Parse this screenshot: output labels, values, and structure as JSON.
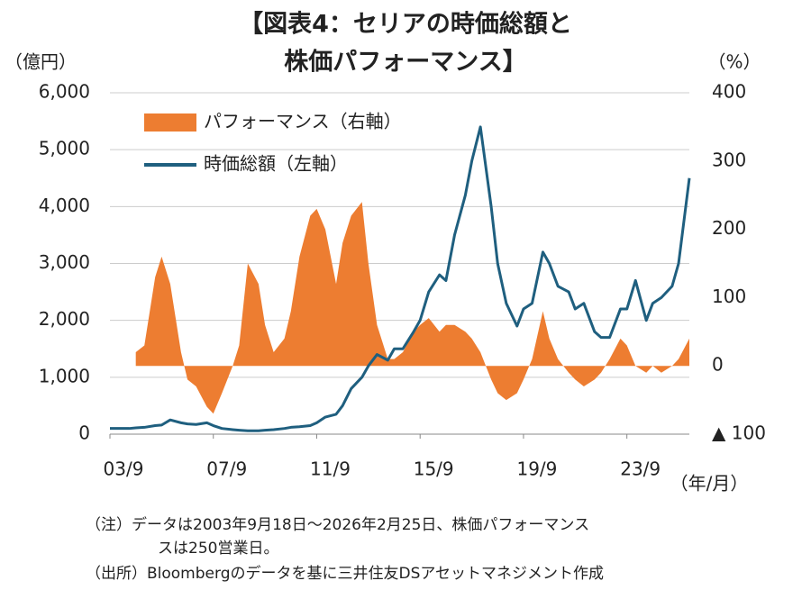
{
  "chart_data": {
    "type": "dual-axis-area-line",
    "title_lines": [
      "【図表4：セリアの時価総額と",
      "株価パフォーマンス】"
    ],
    "y_label": "（億円）",
    "y2_label": "（%）",
    "x_label": "（年/月）",
    "x": [
      "2003-09",
      "2004-01",
      "2004-06",
      "2004-09",
      "2005-01",
      "2005-06",
      "2005-09",
      "2006-01",
      "2006-06",
      "2006-09",
      "2007-01",
      "2007-06",
      "2007-09",
      "2008-01",
      "2008-06",
      "2008-09",
      "2009-01",
      "2009-06",
      "2009-09",
      "2010-01",
      "2010-06",
      "2010-09",
      "2011-01",
      "2011-06",
      "2011-09",
      "2012-01",
      "2012-06",
      "2012-09",
      "2013-01",
      "2013-06",
      "2013-09",
      "2014-01",
      "2014-06",
      "2014-09",
      "2015-01",
      "2015-06",
      "2015-09",
      "2016-01",
      "2016-06",
      "2016-09",
      "2017-01",
      "2017-06",
      "2017-09",
      "2018-01",
      "2018-06",
      "2018-09",
      "2019-01",
      "2019-06",
      "2019-09",
      "2020-01",
      "2020-06",
      "2020-09",
      "2021-01",
      "2021-06",
      "2021-09",
      "2022-01",
      "2022-06",
      "2022-09",
      "2023-01",
      "2023-06",
      "2023-09",
      "2024-01",
      "2024-06",
      "2024-09",
      "2025-01",
      "2025-06",
      "2025-09",
      "2026-02"
    ],
    "series": [
      {
        "name": "パフォーマンス（右軸）",
        "kind": "area",
        "axis": "y2",
        "color": "#ed7d31",
        "values": [
          null,
          null,
          null,
          20,
          30,
          130,
          160,
          120,
          20,
          -20,
          -30,
          -60,
          -70,
          -40,
          0,
          30,
          150,
          120,
          60,
          20,
          40,
          80,
          160,
          220,
          230,
          200,
          120,
          180,
          220,
          240,
          150,
          60,
          10,
          10,
          20,
          50,
          60,
          70,
          50,
          60,
          60,
          50,
          40,
          20,
          -20,
          -40,
          -50,
          -40,
          -20,
          10,
          80,
          40,
          10,
          -10,
          -20,
          -30,
          -20,
          -10,
          10,
          40,
          30,
          0,
          -10,
          0,
          -10,
          0,
          10,
          40
        ]
      },
      {
        "name": "時価総額（左軸）",
        "kind": "line",
        "color": "#1f5f7f",
        "values": [
          100,
          100,
          100,
          110,
          120,
          150,
          160,
          250,
          200,
          180,
          170,
          200,
          150,
          100,
          80,
          70,
          60,
          60,
          70,
          80,
          100,
          120,
          130,
          150,
          200,
          300,
          350,
          500,
          800,
          1000,
          1200,
          1400,
          1300,
          1500,
          1500,
          1800,
          2000,
          2500,
          2800,
          2700,
          3500,
          4200,
          4800,
          5400,
          4000,
          3000,
          2300,
          1900,
          2200,
          2300,
          3200,
          3000,
          2600,
          2500,
          2200,
          2300,
          1800,
          1700,
          1700,
          2200,
          2200,
          2700,
          2000,
          2300,
          2400,
          2600,
          3000,
          4500
        ]
      }
    ],
    "xlim": [
      "2003-09",
      "2026-02"
    ],
    "xticks": [
      {
        "value": "2003-09",
        "label": "03/9"
      },
      {
        "value": "2007-09",
        "label": "07/9"
      },
      {
        "value": "2011-09",
        "label": "11/9"
      },
      {
        "value": "2015-09",
        "label": "15/9"
      },
      {
        "value": "2019-09",
        "label": "19/9"
      },
      {
        "value": "2023-09",
        "label": "23/9"
      }
    ],
    "ylim": [
      0,
      6000
    ],
    "yticks": [
      0,
      {
        "value": 1000,
        "label": "1,000"
      },
      {
        "value": 2000,
        "label": "2,000"
      },
      {
        "value": 3000,
        "label": "3,000"
      },
      {
        "value": 4000,
        "label": "4,000"
      },
      {
        "value": 5000,
        "label": "5,000"
      },
      {
        "value": 6000,
        "label": "6,000"
      }
    ],
    "y2lim": [
      -100,
      400
    ],
    "y2ticks": [
      {
        "value": -100,
        "label": "▲ 100"
      },
      0,
      100,
      200,
      300,
      400
    ],
    "grid": true,
    "notes": [
      "（注）データは2003年9月18日～2026年2月25日、株価パフォーマンス",
      "スは250営業日。",
      "（出所）Bloombergのデータを基に三井住友DSアセットマネジメント作成"
    ]
  }
}
